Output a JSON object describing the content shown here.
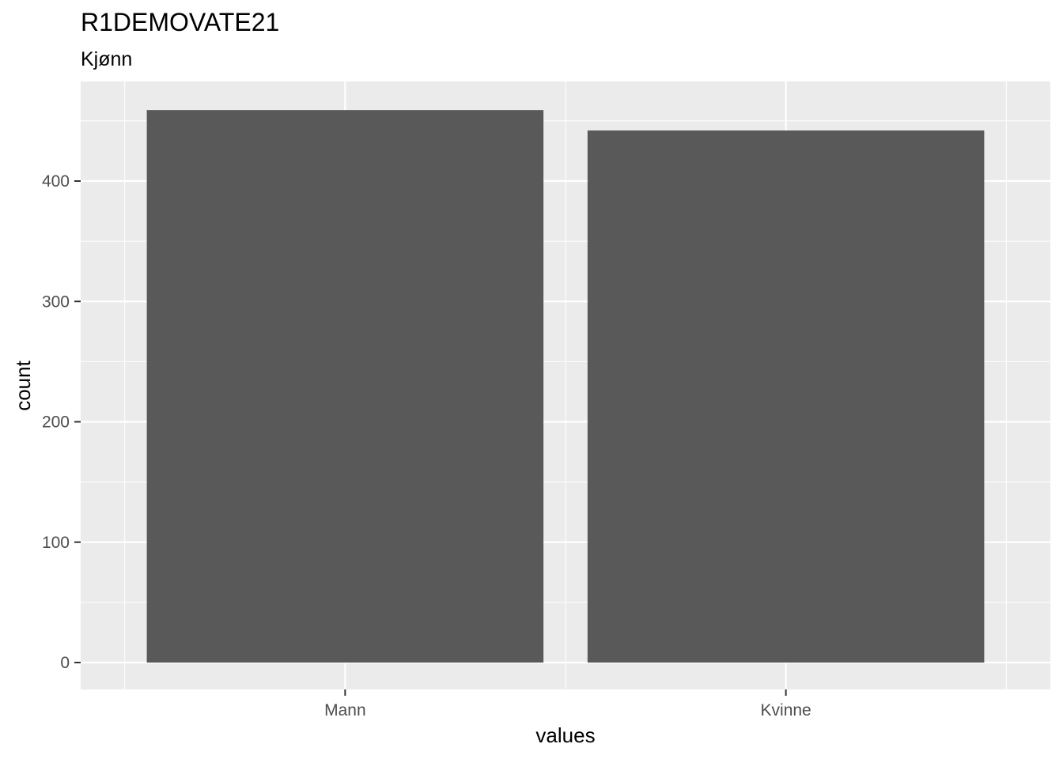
{
  "chart_data": {
    "type": "bar",
    "title": "R1DEMOVATE21",
    "subtitle": "Kjønn",
    "xlabel": "values",
    "ylabel": "count",
    "categories": [
      "Mann",
      "Kvinne"
    ],
    "values": [
      459,
      442
    ],
    "ylim": [
      0,
      483
    ],
    "yticks": [
      0,
      100,
      200,
      300,
      400
    ],
    "grid": true,
    "panel_background": "#ebebeb",
    "bar_color": "#595959",
    "gridline_color": "#ffffff"
  }
}
